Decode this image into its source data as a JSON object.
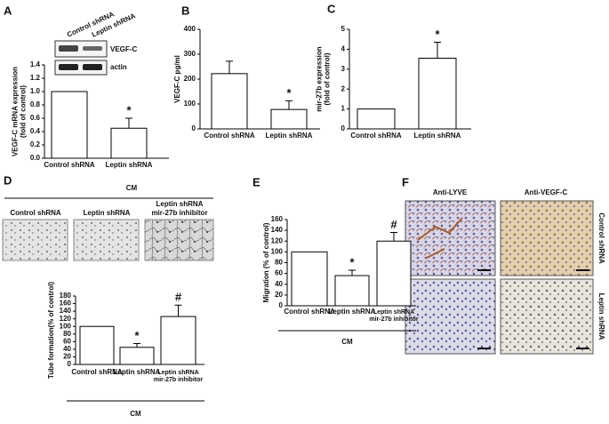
{
  "panel_labels": [
    "A",
    "B",
    "C",
    "D",
    "E",
    "F"
  ],
  "blot": {
    "lanes": [
      "Control shRNA",
      "Leptin shRNA"
    ],
    "bands": [
      "VEGF-C",
      "actin"
    ]
  },
  "panel_d": {
    "header": "CM",
    "images": [
      [
        "Control shRNA"
      ],
      [
        "Leptin shRNA"
      ],
      [
        "Leptin shRNA",
        "mir-27b inhibitor"
      ]
    ]
  },
  "panel_f": {
    "columns": [
      "Anti-LYVE",
      "Anti-VEGF-C"
    ],
    "rows": [
      "Control shRNA",
      "Leptin shRNA"
    ]
  },
  "chart_data": [
    {
      "type": "bar",
      "y_label": [
        "VEGF-C mRNA expression",
        "(fold of control)"
      ],
      "categories": [
        [
          "Control shRNA"
        ],
        [
          "Leptin shRNA"
        ]
      ],
      "values": [
        1.0,
        0.45
      ],
      "errors": [
        null,
        0.15
      ],
      "significance": [
        null,
        "*"
      ],
      "color": "#ffffff",
      "ylim": [
        0,
        1.4
      ],
      "yticks": [
        {
          "value": 0,
          "label": "0.0"
        },
        0.2,
        0.4,
        0.6,
        0.8,
        {
          "value": 1,
          "label": "1.0"
        },
        1.2,
        1.4
      ]
    },
    {
      "type": "bar",
      "y_label": [
        "VEGF-C pg/ml"
      ],
      "categories": [
        [
          "Control shRNA"
        ],
        [
          "Leptin shRNA"
        ]
      ],
      "values": [
        222,
        78
      ],
      "errors": [
        50,
        35
      ],
      "significance": [
        null,
        "*"
      ],
      "color": "#ffffff",
      "ylim": [
        0,
        400
      ],
      "yticks": [
        0,
        100,
        200,
        300,
        400
      ]
    },
    {
      "type": "bar",
      "y_label": [
        "mir-27b expression",
        "(fold of control)"
      ],
      "categories": [
        [
          "Control shRNA"
        ],
        [
          "Leptin shRNA"
        ]
      ],
      "values": [
        1,
        3.55
      ],
      "errors": [
        null,
        0.8
      ],
      "significance": [
        null,
        "*"
      ],
      "color": "#ffffff",
      "ylim": [
        0,
        5
      ],
      "yticks": [
        0,
        1,
        2,
        3,
        4,
        5
      ]
    },
    {
      "type": "bar",
      "y_label": [
        "Tube formation(% of control)"
      ],
      "categories": [
        [
          "Control shRNA"
        ],
        [
          "Leptin shRNA"
        ],
        [
          "Leptin shRNA",
          "mir-27b inhibitor"
        ]
      ],
      "values": [
        100,
        45,
        126
      ],
      "errors": [
        null,
        10,
        30
      ],
      "significance": [
        null,
        "*",
        "#"
      ],
      "group_label": "CM",
      "color": "#ffffff",
      "ylim": [
        0,
        180
      ],
      "yticks": [
        0,
        20,
        40,
        60,
        80,
        100,
        120,
        140,
        160,
        180
      ]
    },
    {
      "type": "bar",
      "y_label": [
        "Migration (% of control)"
      ],
      "categories": [
        [
          "Control shRNA"
        ],
        [
          "Leptin shRNA"
        ],
        [
          "Leptin shRNA",
          "mir-27b inhibitor"
        ]
      ],
      "values": [
        100,
        56,
        120
      ],
      "errors": [
        null,
        10,
        16
      ],
      "significance": [
        null,
        "*",
        "#"
      ],
      "group_label": "CM",
      "color": "#ffffff",
      "ylim": [
        0,
        160
      ],
      "yticks": [
        0,
        20,
        40,
        60,
        80,
        100,
        120,
        140,
        160
      ]
    }
  ]
}
